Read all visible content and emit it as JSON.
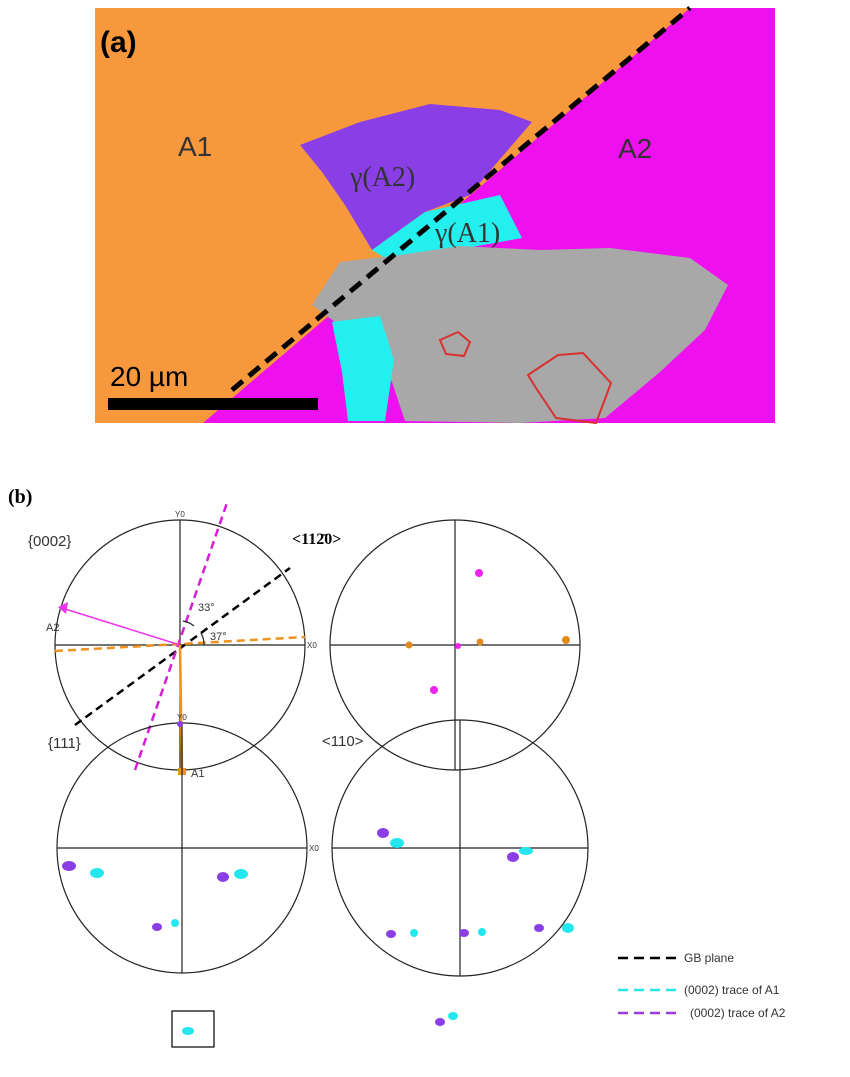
{
  "panel_a": {
    "label": "(a)",
    "grain_A1": "A1",
    "grain_A2": "A2",
    "gamma_A2": "γ(A2)",
    "gamma_A1": "γ(A1)",
    "scale_bar": "20 µm"
  },
  "panel_b": {
    "label": "(b)",
    "pole_figures": [
      {
        "title": "{0002}",
        "y_axis": "Y0",
        "x_axis": "X0",
        "angle_1": "33°",
        "angle_2": "37°",
        "pole_A2": "A2",
        "pole_A1": "A1"
      },
      {
        "title": "<112̄0>"
      },
      {
        "title": "{111}",
        "y_axis": "Y0",
        "x_axis": "X0"
      },
      {
        "title": "<110>"
      }
    ],
    "legend": [
      "GB plane",
      "(0002) trace of A1",
      "(0002) trace of A2"
    ]
  }
}
